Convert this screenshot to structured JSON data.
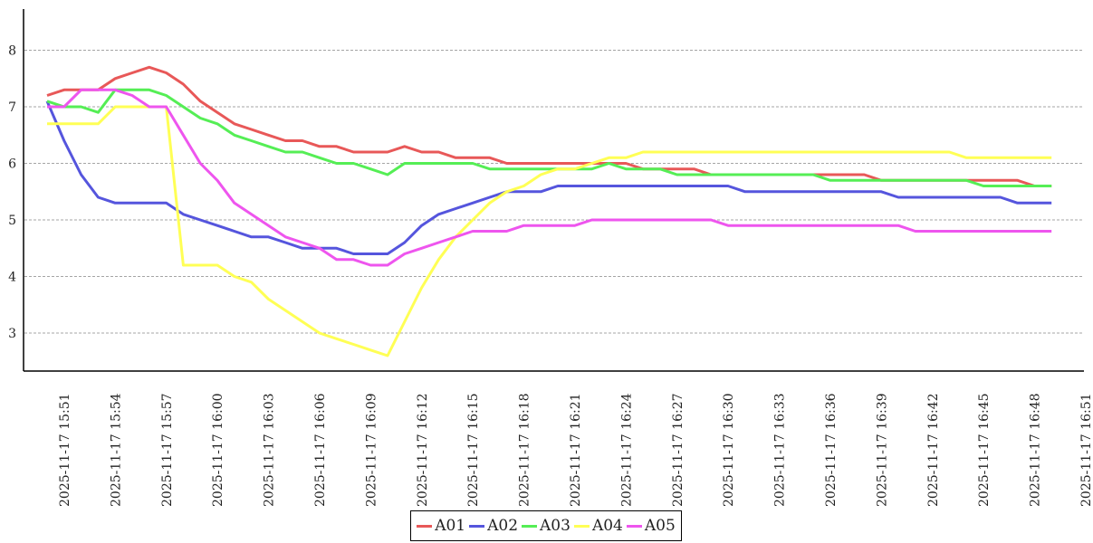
{
  "chart_data": {
    "type": "line",
    "title": "",
    "xlabel": "",
    "ylabel": "",
    "ylim": [
      2.3,
      8.6
    ],
    "y_ticks": [
      3,
      4,
      5,
      6,
      7,
      8
    ],
    "grid": "horizontal dashed",
    "legend_position": "bottom-center",
    "x": [
      "15:51",
      "15:52",
      "15:53",
      "15:54",
      "15:55",
      "15:56",
      "15:57",
      "15:58",
      "15:59",
      "16:00",
      "16:01",
      "16:02",
      "16:03",
      "16:04",
      "16:05",
      "16:06",
      "16:07",
      "16:08",
      "16:09",
      "16:10",
      "16:11",
      "16:12",
      "16:13",
      "16:14",
      "16:15",
      "16:16",
      "16:17",
      "16:18",
      "16:19",
      "16:20",
      "16:21",
      "16:22",
      "16:23",
      "16:24",
      "16:25",
      "16:26",
      "16:27",
      "16:28",
      "16:29",
      "16:30",
      "16:31",
      "16:32",
      "16:33",
      "16:34",
      "16:35",
      "16:36",
      "16:37",
      "16:38",
      "16:39",
      "16:40",
      "16:41",
      "16:42",
      "16:43",
      "16:44",
      "16:45",
      "16:46",
      "16:47",
      "16:48",
      "16:49",
      "16:50"
    ],
    "x_tick_labels": [
      "2025-11-17 15:51",
      "2025-11-17 15:54",
      "2025-11-17 15:57",
      "2025-11-17 16:00",
      "2025-11-17 16:03",
      "2025-11-17 16:06",
      "2025-11-17 16:09",
      "2025-11-17 16:12",
      "2025-11-17 16:15",
      "2025-11-17 16:18",
      "2025-11-17 16:21",
      "2025-11-17 16:24",
      "2025-11-17 16:27",
      "2025-11-17 16:30",
      "2025-11-17 16:33",
      "2025-11-17 16:36",
      "2025-11-17 16:39",
      "2025-11-17 16:42",
      "2025-11-17 16:45",
      "2025-11-17 16:48",
      "2025-11-17 16:51"
    ],
    "series": [
      {
        "name": "A01",
        "color": "#e85858",
        "values": [
          7.2,
          7.3,
          7.3,
          7.3,
          7.5,
          7.6,
          7.7,
          7.6,
          7.4,
          7.1,
          6.9,
          6.7,
          6.6,
          6.5,
          6.4,
          6.4,
          6.3,
          6.3,
          6.2,
          6.2,
          6.2,
          6.3,
          6.2,
          6.2,
          6.1,
          6.1,
          6.1,
          6.0,
          6.0,
          6.0,
          6.0,
          6.0,
          6.0,
          6.0,
          6.0,
          5.9,
          5.9,
          5.9,
          5.9,
          5.8,
          5.8,
          5.8,
          5.8,
          5.8,
          5.8,
          5.8,
          5.8,
          5.8,
          5.8,
          5.7,
          5.7,
          5.7,
          5.7,
          5.7,
          5.7,
          5.7,
          5.7,
          5.7,
          5.6,
          5.6
        ]
      },
      {
        "name": "A02",
        "color": "#5555dd",
        "values": [
          7.1,
          6.4,
          5.8,
          5.4,
          5.3,
          5.3,
          5.3,
          5.3,
          5.1,
          5.0,
          4.9,
          4.8,
          4.7,
          4.7,
          4.6,
          4.5,
          4.5,
          4.5,
          4.4,
          4.4,
          4.4,
          4.6,
          4.9,
          5.1,
          5.2,
          5.3,
          5.4,
          5.5,
          5.5,
          5.5,
          5.6,
          5.6,
          5.6,
          5.6,
          5.6,
          5.6,
          5.6,
          5.6,
          5.6,
          5.6,
          5.6,
          5.5,
          5.5,
          5.5,
          5.5,
          5.5,
          5.5,
          5.5,
          5.5,
          5.5,
          5.4,
          5.4,
          5.4,
          5.4,
          5.4,
          5.4,
          5.4,
          5.3,
          5.3,
          5.3
        ]
      },
      {
        "name": "A03",
        "color": "#55ee55",
        "values": [
          7.1,
          7.0,
          7.0,
          6.9,
          7.3,
          7.3,
          7.3,
          7.2,
          7.0,
          6.8,
          6.7,
          6.5,
          6.4,
          6.3,
          6.2,
          6.2,
          6.1,
          6.0,
          6.0,
          5.9,
          5.8,
          6.0,
          6.0,
          6.0,
          6.0,
          6.0,
          5.9,
          5.9,
          5.9,
          5.9,
          5.9,
          5.9,
          5.9,
          6.0,
          5.9,
          5.9,
          5.9,
          5.8,
          5.8,
          5.8,
          5.8,
          5.8,
          5.8,
          5.8,
          5.8,
          5.8,
          5.7,
          5.7,
          5.7,
          5.7,
          5.7,
          5.7,
          5.7,
          5.7,
          5.7,
          5.6,
          5.6,
          5.6,
          5.6,
          5.6
        ]
      },
      {
        "name": "A04",
        "color": "#ffff55",
        "values": [
          6.7,
          6.7,
          6.7,
          6.7,
          7.0,
          7.0,
          7.0,
          7.0,
          4.2,
          4.2,
          4.2,
          4.0,
          3.9,
          3.6,
          3.4,
          3.2,
          3.0,
          2.9,
          2.8,
          2.7,
          2.6,
          3.2,
          3.8,
          4.3,
          4.7,
          5.0,
          5.3,
          5.5,
          5.6,
          5.8,
          5.9,
          5.9,
          6.0,
          6.1,
          6.1,
          6.2,
          6.2,
          6.2,
          6.2,
          6.2,
          6.2,
          6.2,
          6.2,
          6.2,
          6.2,
          6.2,
          6.2,
          6.2,
          6.2,
          6.2,
          6.2,
          6.2,
          6.2,
          6.2,
          6.1,
          6.1,
          6.1,
          6.1,
          6.1,
          6.1
        ]
      },
      {
        "name": "A05",
        "color": "#ee55ee",
        "values": [
          7.0,
          7.0,
          7.3,
          7.3,
          7.3,
          7.2,
          7.0,
          7.0,
          6.5,
          6.0,
          5.7,
          5.3,
          5.1,
          4.9,
          4.7,
          4.6,
          4.5,
          4.3,
          4.3,
          4.2,
          4.2,
          4.4,
          4.5,
          4.6,
          4.7,
          4.8,
          4.8,
          4.8,
          4.9,
          4.9,
          4.9,
          4.9,
          5.0,
          5.0,
          5.0,
          5.0,
          5.0,
          5.0,
          5.0,
          5.0,
          4.9,
          4.9,
          4.9,
          4.9,
          4.9,
          4.9,
          4.9,
          4.9,
          4.9,
          4.9,
          4.9,
          4.8,
          4.8,
          4.8,
          4.8,
          4.8,
          4.8,
          4.8,
          4.8,
          4.8
        ]
      }
    ]
  }
}
